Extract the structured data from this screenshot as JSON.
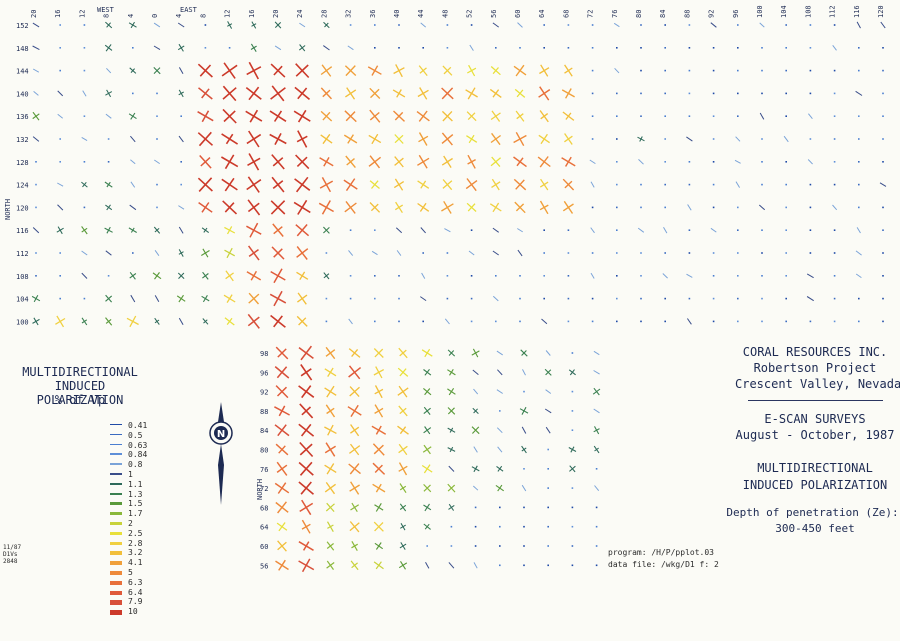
{
  "axes": {
    "top_labels": [
      "20",
      "16",
      "12",
      "8",
      "4",
      "0",
      "4",
      "8",
      "12",
      "16",
      "20",
      "24",
      "28",
      "32",
      "36",
      "40",
      "44",
      "48",
      "52",
      "56",
      "60",
      "64",
      "68",
      "72",
      "76",
      "80",
      "84",
      "88",
      "92",
      "96",
      "100",
      "104",
      "108",
      "112",
      "116",
      "120"
    ],
    "west_label": "WEST",
    "east_label": "EAST",
    "north_label_upper": "NORTH",
    "north_label_lower": "NORTH",
    "upper_left_labels": [
      "152",
      "148",
      "144",
      "140",
      "136",
      "132",
      "128",
      "124",
      "120",
      "116",
      "112",
      "108",
      "104",
      "100"
    ],
    "lower_left_labels": [
      "98",
      "96",
      "92",
      "88",
      "84",
      "80",
      "76",
      "72",
      "68",
      "64",
      "60",
      "56"
    ]
  },
  "legend": {
    "title_lines": [
      "MULTIDIRECTIONAL",
      "INDUCED POLARIZATION",
      "% of Vp"
    ],
    "entries": [
      {
        "value": "0.41",
        "color": "#1f4aa6"
      },
      {
        "value": "0.5",
        "color": "#3a6ac0"
      },
      {
        "value": "0.63",
        "color": "#4a7ed0"
      },
      {
        "value": "0.84",
        "color": "#5e8fd8"
      },
      {
        "value": "0.8",
        "color": "#7aa3d8"
      },
      {
        "value": "1",
        "color": "#3a4e8a"
      },
      {
        "value": "1.1",
        "color": "#2e6a5a"
      },
      {
        "value": "1.3",
        "color": "#3a8050"
      },
      {
        "value": "1.5",
        "color": "#5a9a3a"
      },
      {
        "value": "1.7",
        "color": "#8ab83a"
      },
      {
        "value": "2",
        "color": "#c8d23a"
      },
      {
        "value": "2.5",
        "color": "#e8e03a"
      },
      {
        "value": "2.8",
        "color": "#f0d040"
      },
      {
        "value": "3.2",
        "color": "#f2bf3a"
      },
      {
        "value": "4.1",
        "color": "#f0a03a"
      },
      {
        "value": "5",
        "color": "#ee8a3a"
      },
      {
        "value": "6.3",
        "color": "#e8703a"
      },
      {
        "value": "6.4",
        "color": "#e05a3a"
      },
      {
        "value": "7.9",
        "color": "#d8503a"
      },
      {
        "value": "10",
        "color": "#cc3a2a"
      }
    ]
  },
  "compass": {
    "label": "N"
  },
  "title_block": {
    "company": "CORAL RESOURCES INC.",
    "project": "Robertson Project",
    "location": "Crescent Valley, Nevada",
    "survey": "E-SCAN SURVEYS",
    "dates": "August - October, 1987",
    "map_title_1": "MULTIDIRECTIONAL",
    "map_title_2": "INDUCED POLARIZATION",
    "depth_1": "Depth of penetration (Ze):",
    "depth_2": "300-450 feet"
  },
  "program_info": {
    "program": "program: /H/P/pplot.03",
    "data_file": "data file: /wkg/D1 f: 2"
  },
  "corner_note": [
    "11/87",
    "D1Vs",
    "2848"
  ]
}
